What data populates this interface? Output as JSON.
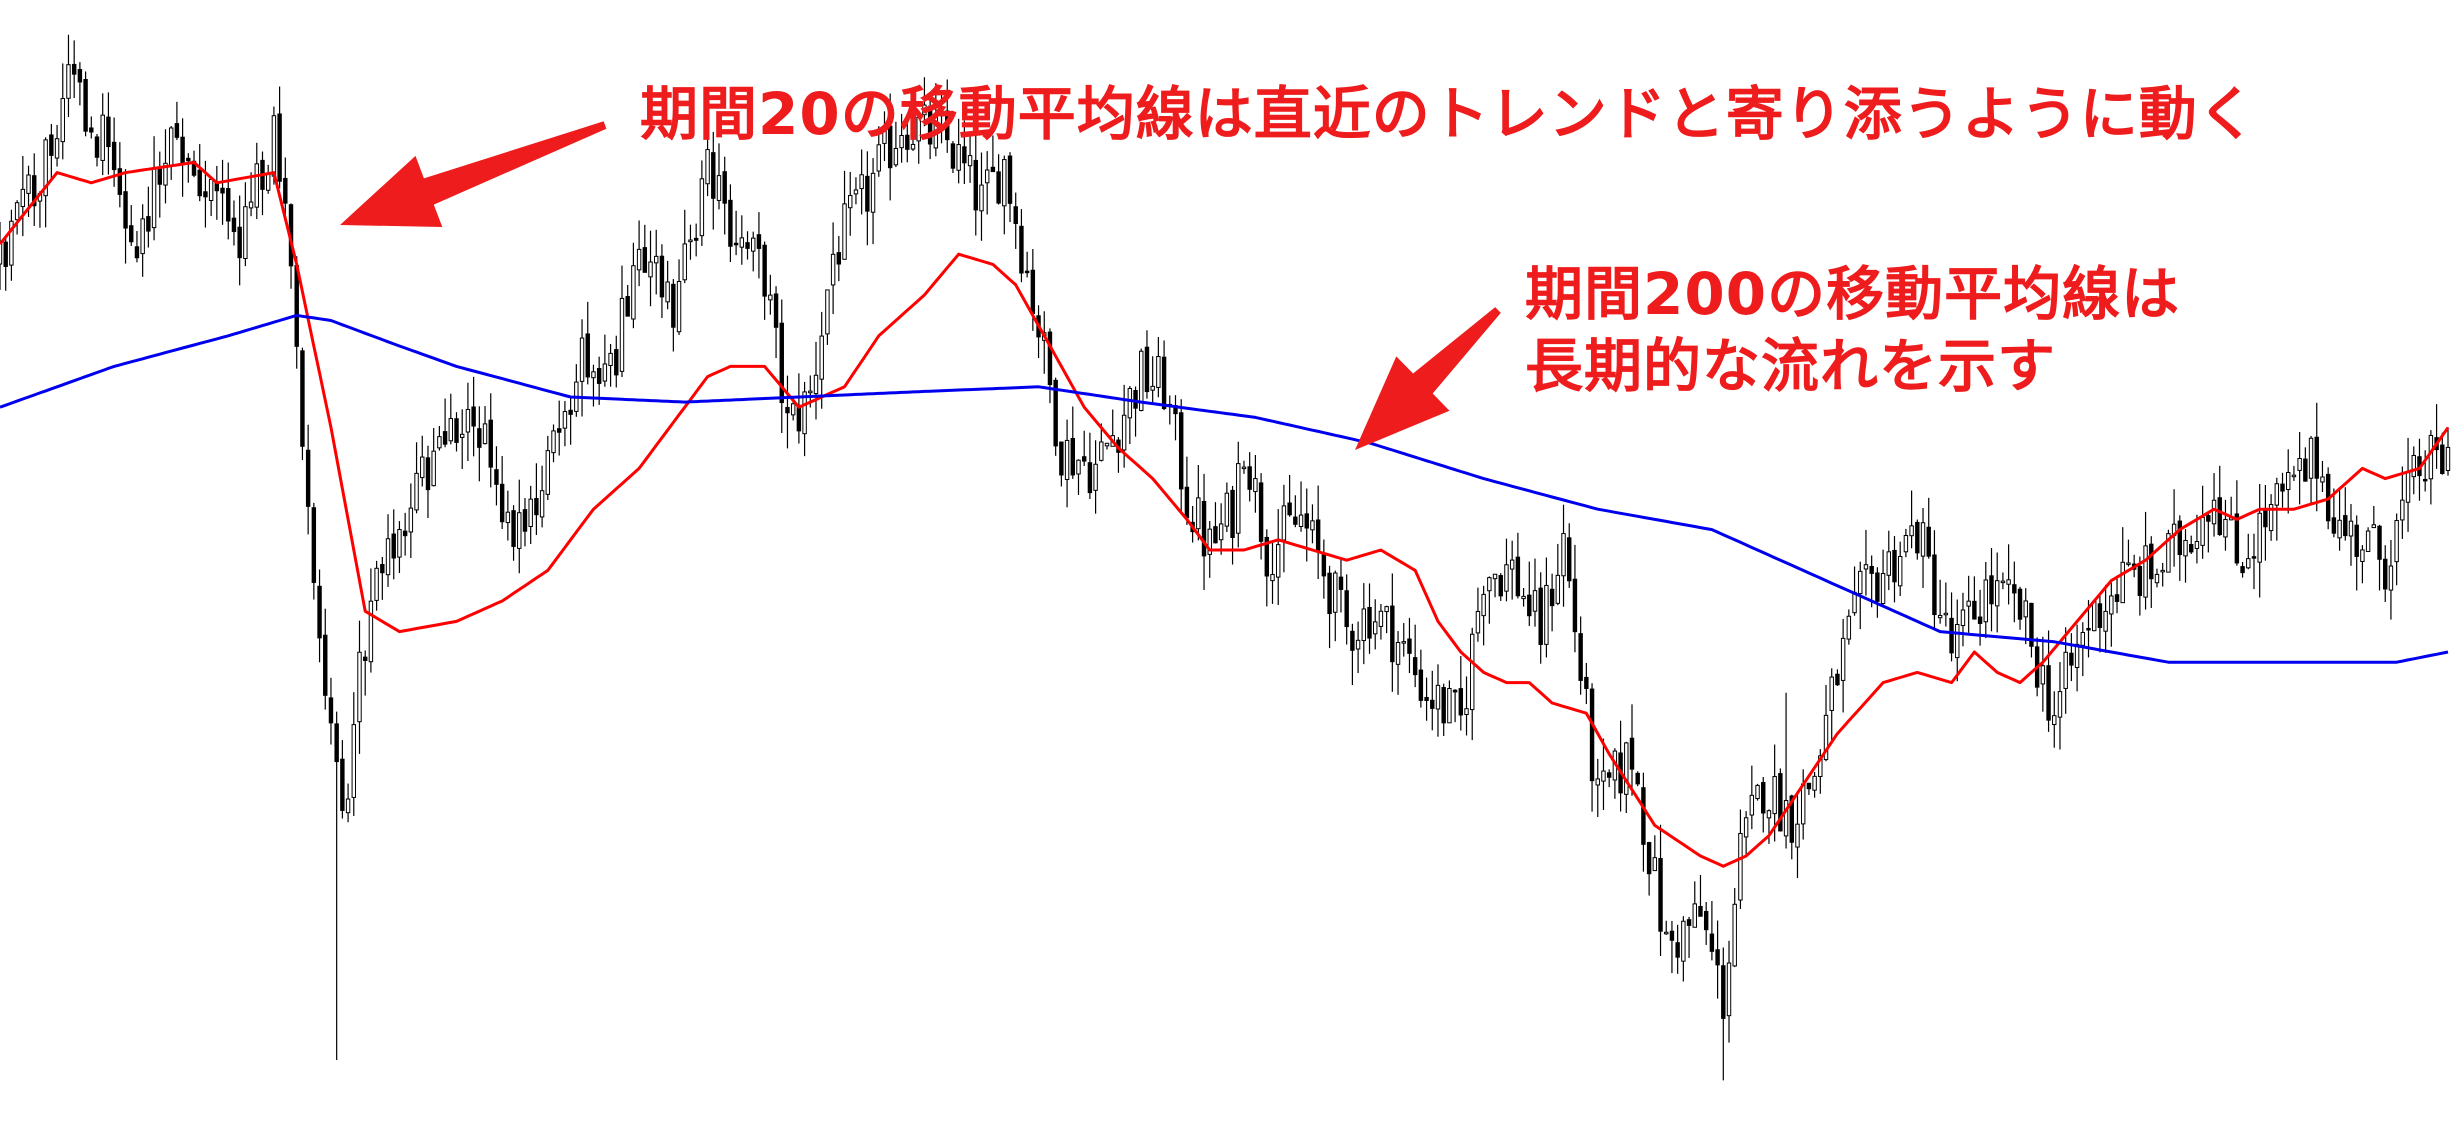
{
  "chart_data": {
    "type": "candlestick",
    "title": "",
    "xlabel": "",
    "ylabel": "",
    "grid": false,
    "candles": {
      "count": 430,
      "up_color": "#ffffff",
      "down_color": "#000000",
      "outline_color": "#000000",
      "anchor_closes": [
        [
          0,
          0.78
        ],
        [
          6,
          0.86
        ],
        [
          12,
          0.95
        ],
        [
          18,
          0.9
        ],
        [
          24,
          0.8
        ],
        [
          30,
          0.92
        ],
        [
          36,
          0.86
        ],
        [
          42,
          0.8
        ],
        [
          48,
          0.9
        ],
        [
          51,
          0.78
        ],
        [
          56,
          0.4
        ],
        [
          60,
          0.22
        ],
        [
          64,
          0.42
        ],
        [
          70,
          0.52
        ],
        [
          78,
          0.62
        ],
        [
          84,
          0.62
        ],
        [
          90,
          0.52
        ],
        [
          96,
          0.58
        ],
        [
          102,
          0.68
        ],
        [
          108,
          0.7
        ],
        [
          114,
          0.8
        ],
        [
          118,
          0.74
        ],
        [
          124,
          0.87
        ],
        [
          130,
          0.8
        ],
        [
          134,
          0.77
        ],
        [
          138,
          0.62
        ],
        [
          142,
          0.65
        ],
        [
          146,
          0.79
        ],
        [
          152,
          0.85
        ],
        [
          158,
          0.92
        ],
        [
          166,
          0.9
        ],
        [
          172,
          0.84
        ],
        [
          176,
          0.88
        ],
        [
          182,
          0.72
        ],
        [
          186,
          0.6
        ],
        [
          192,
          0.58
        ],
        [
          200,
          0.67
        ],
        [
          204,
          0.66
        ],
        [
          208,
          0.55
        ],
        [
          212,
          0.5
        ],
        [
          216,
          0.54
        ],
        [
          218,
          0.61
        ],
        [
          222,
          0.5
        ],
        [
          228,
          0.53
        ],
        [
          232,
          0.48
        ],
        [
          236,
          0.42
        ],
        [
          240,
          0.44
        ],
        [
          244,
          0.42
        ],
        [
          250,
          0.36
        ],
        [
          256,
          0.33
        ],
        [
          260,
          0.48
        ],
        [
          265,
          0.48
        ],
        [
          270,
          0.42
        ],
        [
          274,
          0.51
        ],
        [
          280,
          0.25
        ],
        [
          286,
          0.3
        ],
        [
          292,
          0.11
        ],
        [
          298,
          0.14
        ],
        [
          302,
          0.06
        ],
        [
          305,
          0.2
        ],
        [
          309,
          0.27
        ],
        [
          314,
          0.24
        ],
        [
          318,
          0.28
        ],
        [
          322,
          0.38
        ],
        [
          326,
          0.45
        ],
        [
          330,
          0.48
        ],
        [
          336,
          0.52
        ],
        [
          342,
          0.4
        ],
        [
          348,
          0.46
        ],
        [
          354,
          0.44
        ],
        [
          360,
          0.34
        ],
        [
          366,
          0.43
        ],
        [
          372,
          0.47
        ],
        [
          378,
          0.48
        ],
        [
          384,
          0.52
        ],
        [
          388,
          0.56
        ],
        [
          392,
          0.49
        ],
        [
          396,
          0.52
        ],
        [
          400,
          0.55
        ],
        [
          406,
          0.59
        ],
        [
          410,
          0.52
        ],
        [
          414,
          0.51
        ],
        [
          418,
          0.49
        ],
        [
          424,
          0.58
        ],
        [
          429,
          0.59
        ]
      ]
    },
    "series": [
      {
        "name": "",
        "period": 20,
        "color": "#ff0000",
        "values": [
          [
            0,
            0.8
          ],
          [
            10,
            0.87
          ],
          [
            16,
            0.86
          ],
          [
            22,
            0.87
          ],
          [
            34,
            0.88
          ],
          [
            38,
            0.86
          ],
          [
            48,
            0.87
          ],
          [
            52,
            0.78
          ],
          [
            58,
            0.62
          ],
          [
            64,
            0.44
          ],
          [
            70,
            0.42
          ],
          [
            80,
            0.43
          ],
          [
            88,
            0.45
          ],
          [
            96,
            0.48
          ],
          [
            104,
            0.54
          ],
          [
            112,
            0.58
          ],
          [
            120,
            0.64
          ],
          [
            124,
            0.67
          ],
          [
            128,
            0.68
          ],
          [
            134,
            0.68
          ],
          [
            140,
            0.64
          ],
          [
            148,
            0.66
          ],
          [
            154,
            0.71
          ],
          [
            162,
            0.75
          ],
          [
            168,
            0.79
          ],
          [
            174,
            0.78
          ],
          [
            178,
            0.76
          ],
          [
            184,
            0.7
          ],
          [
            190,
            0.64
          ],
          [
            196,
            0.6
          ],
          [
            202,
            0.57
          ],
          [
            208,
            0.53
          ],
          [
            212,
            0.5
          ],
          [
            218,
            0.5
          ],
          [
            224,
            0.51
          ],
          [
            230,
            0.5
          ],
          [
            236,
            0.49
          ],
          [
            242,
            0.5
          ],
          [
            248,
            0.48
          ],
          [
            252,
            0.43
          ],
          [
            256,
            0.4
          ],
          [
            260,
            0.38
          ],
          [
            264,
            0.37
          ],
          [
            268,
            0.37
          ],
          [
            272,
            0.35
          ],
          [
            278,
            0.34
          ],
          [
            282,
            0.3
          ],
          [
            290,
            0.23
          ],
          [
            298,
            0.2
          ],
          [
            302,
            0.19
          ],
          [
            306,
            0.2
          ],
          [
            310,
            0.22
          ],
          [
            316,
            0.27
          ],
          [
            322,
            0.32
          ],
          [
            330,
            0.37
          ],
          [
            336,
            0.38
          ],
          [
            342,
            0.37
          ],
          [
            346,
            0.4
          ],
          [
            350,
            0.38
          ],
          [
            354,
            0.37
          ],
          [
            358,
            0.39
          ],
          [
            364,
            0.43
          ],
          [
            370,
            0.47
          ],
          [
            376,
            0.49
          ],
          [
            382,
            0.52
          ],
          [
            388,
            0.54
          ],
          [
            392,
            0.53
          ],
          [
            396,
            0.54
          ],
          [
            402,
            0.54
          ],
          [
            408,
            0.55
          ],
          [
            414,
            0.58
          ],
          [
            418,
            0.57
          ],
          [
            424,
            0.58
          ],
          [
            429,
            0.62
          ]
        ]
      },
      {
        "name": "",
        "period": 200,
        "color": "#0000ee",
        "values": [
          [
            0,
            0.64
          ],
          [
            20,
            0.68
          ],
          [
            40,
            0.71
          ],
          [
            52,
            0.73
          ],
          [
            58,
            0.725
          ],
          [
            70,
            0.7
          ],
          [
            80,
            0.68
          ],
          [
            100,
            0.65
          ],
          [
            120,
            0.645
          ],
          [
            140,
            0.65
          ],
          [
            160,
            0.655
          ],
          [
            182,
            0.66
          ],
          [
            200,
            0.645
          ],
          [
            220,
            0.63
          ],
          [
            240,
            0.605
          ],
          [
            260,
            0.57
          ],
          [
            280,
            0.54
          ],
          [
            300,
            0.52
          ],
          [
            320,
            0.47
          ],
          [
            340,
            0.42
          ],
          [
            360,
            0.41
          ],
          [
            380,
            0.39
          ],
          [
            400,
            0.39
          ],
          [
            410,
            0.39
          ],
          [
            420,
            0.39
          ],
          [
            429,
            0.4
          ]
        ]
      }
    ],
    "annotations": [
      {
        "text": "期間20の移動平均線は直近のトレンドと寄り添うように動く",
        "color": "#ee1c1c",
        "arrow_color": "#ee1c1c"
      },
      {
        "lines": [
          "期間200の移動平均線は",
          "長期的な流れを示す"
        ],
        "color": "#ee1c1c",
        "arrow_color": "#ee1c1c"
      }
    ]
  }
}
